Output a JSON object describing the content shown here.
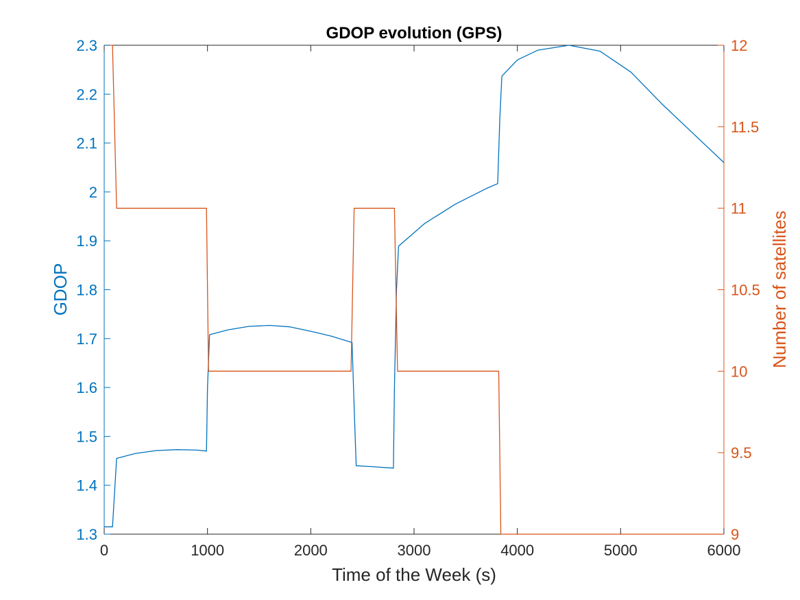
{
  "chart_data": {
    "type": "line",
    "title": "GDOP evolution (GPS)",
    "xlabel": "Time of the Week (s)",
    "ylabel_left": "GDOP",
    "ylabel_right": "Number of satellites",
    "xlim": [
      0,
      6000
    ],
    "ylim_left": [
      1.3,
      2.3
    ],
    "ylim_right": [
      9,
      12
    ],
    "x_ticks": [
      "0",
      "1000",
      "2000",
      "3000",
      "4000",
      "5000",
      "6000"
    ],
    "y_left_ticks": [
      "1.3",
      "1.4",
      "1.5",
      "1.6",
      "1.7",
      "1.8",
      "1.9",
      "2",
      "2.1",
      "2.2",
      "2.3"
    ],
    "y_right_ticks": [
      "9",
      "9.5",
      "10",
      "10.5",
      "11",
      "11.5",
      "12"
    ],
    "grid": false,
    "colors": {
      "left": "#0072BD",
      "right": "#D95319",
      "axis": "#262626"
    },
    "series": [
      {
        "axis": "left",
        "color": "#0072BD",
        "x": [
          0,
          80,
          120,
          300,
          500,
          700,
          900,
          990,
          1000,
          1020,
          1200,
          1400,
          1600,
          1800,
          2000,
          2200,
          2400,
          2420,
          2440,
          2600,
          2800,
          2810,
          2830,
          2850,
          3100,
          3400,
          3700,
          3810,
          3830,
          3850,
          4000,
          4200,
          4500,
          4800,
          5100,
          5400,
          5700,
          6000
        ],
        "values": [
          1.315,
          1.315,
          1.455,
          1.465,
          1.471,
          1.473,
          1.472,
          1.47,
          1.6,
          1.708,
          1.718,
          1.725,
          1.727,
          1.724,
          1.715,
          1.705,
          1.692,
          1.56,
          1.44,
          1.438,
          1.435,
          1.6,
          1.8,
          1.889,
          1.935,
          1.975,
          2.007,
          2.017,
          2.15,
          2.237,
          2.27,
          2.29,
          2.3,
          2.288,
          2.245,
          2.18,
          2.12,
          2.06
        ]
      },
      {
        "axis": "right",
        "color": "#D95319",
        "x": [
          0,
          80,
          120,
          990,
          1010,
          2390,
          2420,
          2810,
          2840,
          3820,
          3840,
          6000
        ],
        "values": [
          12,
          12,
          11,
          11,
          10,
          10,
          11,
          11,
          10,
          10,
          9,
          9
        ]
      }
    ]
  }
}
